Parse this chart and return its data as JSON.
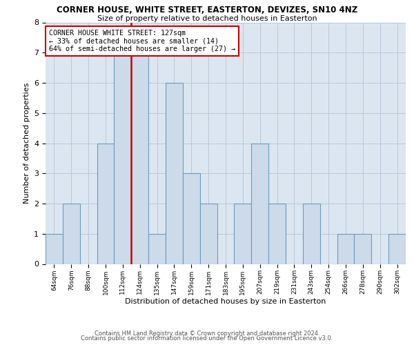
{
  "title": "CORNER HOUSE, WHITE STREET, EASTERTON, DEVIZES, SN10 4NZ",
  "subtitle": "Size of property relative to detached houses in Easterton",
  "xlabel": "Distribution of detached houses by size in Easterton",
  "ylabel": "Number of detached properties",
  "bin_labels": [
    "64sqm",
    "76sqm",
    "88sqm",
    "100sqm",
    "112sqm",
    "124sqm",
    "135sqm",
    "147sqm",
    "159sqm",
    "171sqm",
    "183sqm",
    "195sqm",
    "207sqm",
    "219sqm",
    "231sqm",
    "243sqm",
    "254sqm",
    "266sqm",
    "278sqm",
    "290sqm",
    "302sqm"
  ],
  "bar_heights": [
    1,
    2,
    0,
    4,
    7,
    7,
    1,
    6,
    3,
    2,
    0,
    2,
    4,
    2,
    0,
    2,
    0,
    1,
    1,
    0,
    1
  ],
  "bar_color": "#ccdaea",
  "bar_edge_color": "#6a9cbf",
  "property_value_idx": 5,
  "vline_color": "#cc0000",
  "annotation_text": "CORNER HOUSE WHITE STREET: 127sqm\n← 33% of detached houses are smaller (14)\n64% of semi-detached houses are larger (27) →",
  "annotation_box_color": "#ffffff",
  "annotation_box_edge": "#cc0000",
  "grid_color": "#b8c8d8",
  "bg_color": "#dce6f0",
  "ylim": [
    0,
    8
  ],
  "yticks": [
    0,
    1,
    2,
    3,
    4,
    5,
    6,
    7,
    8
  ],
  "footer1": "Contains HM Land Registry data © Crown copyright and database right 2024.",
  "footer2": "Contains public sector information licensed under the Open Government Licence v3.0."
}
